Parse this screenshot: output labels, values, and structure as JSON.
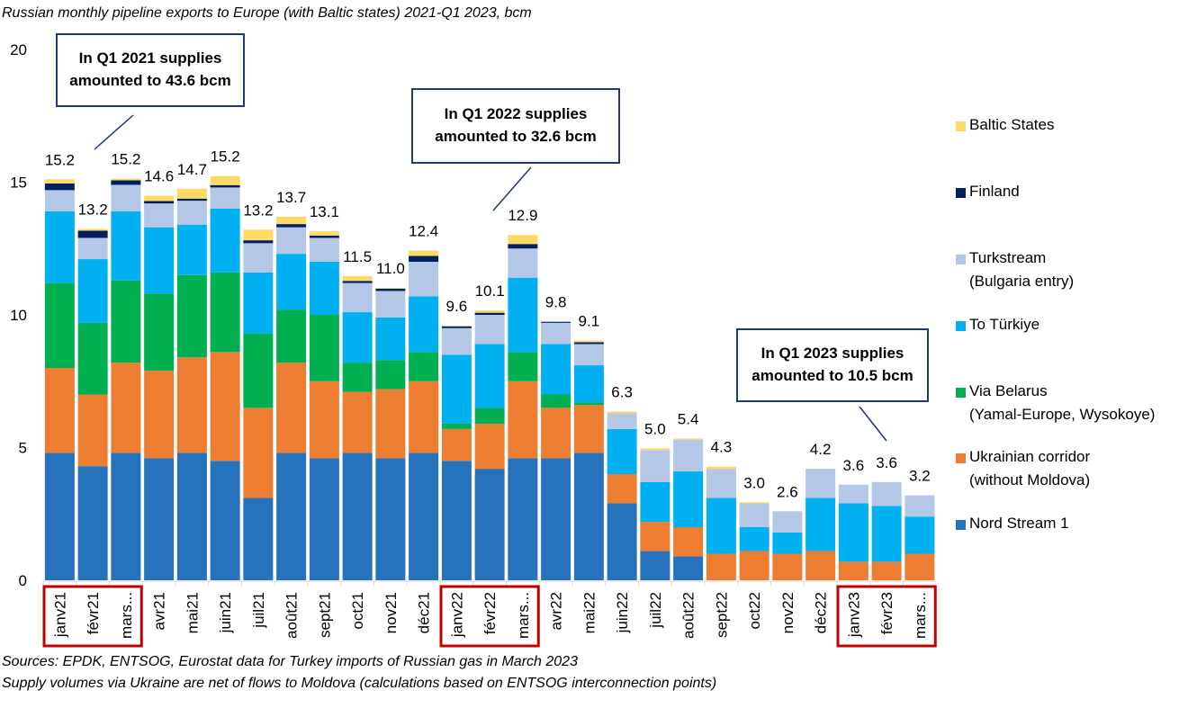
{
  "chart_data": {
    "type": "bar",
    "stacked": true,
    "title": "Russian monthly pipeline exports to Europe (with Baltic states) 2021-Q1 2023, bcm",
    "ylim": [
      0,
      20
    ],
    "yticks": [
      0,
      5,
      10,
      15,
      20
    ],
    "grid": false,
    "legend_position": "right",
    "categories": [
      "janv21",
      "févr21",
      "mars...",
      "avr21",
      "mai21",
      "juin21",
      "juil21",
      "août21",
      "sept21",
      "oct21",
      "nov21",
      "déc21",
      "janv22",
      "févr22",
      "mars...",
      "avr22",
      "mai22",
      "juin22",
      "juil22",
      "août22",
      "sept22",
      "oct22",
      "nov22",
      "déc22",
      "janv23",
      "févr23",
      "mars..."
    ],
    "totals": [
      "15.2",
      "13.2",
      "15.2",
      "14.6",
      "14.7",
      "15.2",
      "13.2",
      "13.7",
      "13.1",
      "11.5",
      "11.0",
      "12.4",
      "9.6",
      "10.1",
      "12.9",
      "9.8",
      "9.1",
      "6.3",
      "5.0",
      "5.4",
      "4.3",
      "3.0",
      "2.6",
      "4.2",
      "3.6",
      "3.6",
      "3.2"
    ],
    "series": [
      {
        "name": "Nord Stream 1",
        "color": "#2672BD",
        "values": [
          4.8,
          4.3,
          4.8,
          4.6,
          4.8,
          4.5,
          3.1,
          4.8,
          4.6,
          4.8,
          4.6,
          4.8,
          4.5,
          4.2,
          4.6,
          4.6,
          4.8,
          2.9,
          1.1,
          0.9,
          0,
          0,
          0,
          0,
          0,
          0,
          0
        ]
      },
      {
        "name": "Ukrainian corridor (without Moldova)",
        "color": "#ED7D31",
        "values": [
          3.2,
          2.7,
          3.4,
          3.3,
          3.6,
          4.1,
          3.4,
          3.4,
          2.9,
          2.3,
          2.6,
          2.7,
          1.2,
          1.7,
          2.9,
          1.9,
          1.8,
          1.1,
          1.1,
          1.1,
          1.0,
          1.1,
          1.0,
          1.1,
          0.7,
          0.7,
          1.0
        ]
      },
      {
        "name": "Via Belarus (Yamal-Europe, Wysokoye)",
        "color": "#00B050",
        "values": [
          3.2,
          2.7,
          3.1,
          2.9,
          3.1,
          3.0,
          2.8,
          2.0,
          2.5,
          1.1,
          1.1,
          1.1,
          0.2,
          0.6,
          1.1,
          0.5,
          0.1,
          0,
          0,
          0,
          0,
          0,
          0,
          0,
          0,
          0,
          0
        ]
      },
      {
        "name": "To Türkiye",
        "color": "#00B0F0",
        "values": [
          2.7,
          2.4,
          2.6,
          2.5,
          1.9,
          2.4,
          2.3,
          2.1,
          2.0,
          1.9,
          1.6,
          2.1,
          2.6,
          2.4,
          2.8,
          1.9,
          1.4,
          1.7,
          1.5,
          2.1,
          2.1,
          0.9,
          0.8,
          2.0,
          2.2,
          2.1,
          1.4
        ]
      },
      {
        "name": "Turkstream (Bulgaria entry)",
        "color": "#B4C7E7",
        "values": [
          0.8,
          0.8,
          1.0,
          0.9,
          0.9,
          0.8,
          1.1,
          1.0,
          0.9,
          1.1,
          1.0,
          1.3,
          1.0,
          1.1,
          1.1,
          0.8,
          0.8,
          0.6,
          1.2,
          1.2,
          1.1,
          0.9,
          0.8,
          1.1,
          0.7,
          0.9,
          0.8
        ]
      },
      {
        "name": "Finland",
        "color": "#002060",
        "values": [
          0.25,
          0.27,
          0.17,
          0.09,
          0.08,
          0.09,
          0.11,
          0.12,
          0.09,
          0.08,
          0.09,
          0.22,
          0.07,
          0.08,
          0.17,
          0.04,
          0.07,
          0,
          0,
          0,
          0,
          0,
          0,
          0,
          0,
          0,
          0
        ]
      },
      {
        "name": "Baltic States",
        "color": "#FFD966",
        "values": [
          0.16,
          0.07,
          0.06,
          0.2,
          0.37,
          0.34,
          0.4,
          0.28,
          0.16,
          0.18,
          0.03,
          0.2,
          0.02,
          0.09,
          0.34,
          0,
          0.06,
          0.06,
          0.07,
          0.04,
          0.08,
          0.04,
          0,
          0,
          0,
          0,
          0
        ]
      }
    ],
    "highlighted_quarters": [
      "Q1 2021",
      "Q1 2022",
      "Q1 2023"
    ]
  },
  "annotations": {
    "q1_2021": "In Q1 2021 supplies amounted to 43.6 bcm",
    "q1_2022": "In Q1 2022 supplies amounted to 32.6 bcm",
    "q1_2023": "In Q1 2023 supplies amounted to 10.5 bcm"
  },
  "legend": [
    {
      "label": "Baltic States",
      "color": "#FFD966"
    },
    {
      "label": "Finland",
      "color": "#002060"
    },
    {
      "label": "Turkstream\n(Bulgaria entry)",
      "color": "#B4C7E7"
    },
    {
      "label": "To Türkiye",
      "color": "#00B0F0"
    },
    {
      "label": "Via Belarus\n(Yamal-Europe, Wysokoye)",
      "color": "#00B050"
    },
    {
      "label": "Ukrainian corridor\n(without Moldova)",
      "color": "#ED7D31"
    },
    {
      "label": "Nord Stream 1",
      "color": "#2672BD"
    }
  ],
  "sources": [
    "Sources: EPDK, ENTSOG, Eurostat data for Turkey imports of Russian gas in March 2023",
    "Supply volumes via Ukraine are net of flows to Moldova (calculations based on ENTSOG interconnection points)"
  ]
}
